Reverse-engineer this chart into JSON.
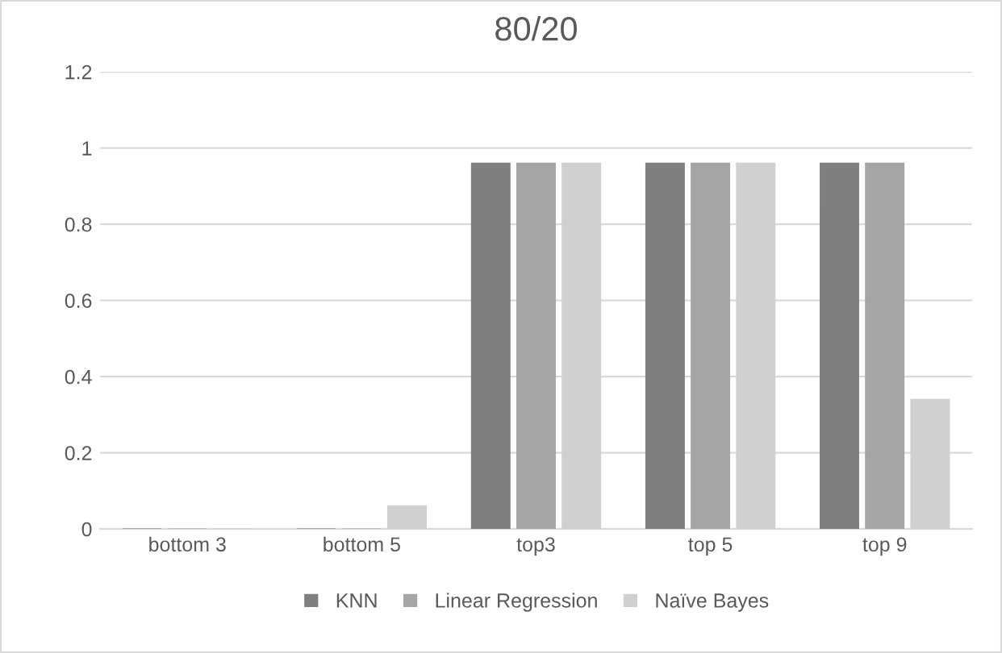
{
  "chart_data": {
    "type": "bar",
    "title": "80/20",
    "categories": [
      "bottom 3",
      "bottom 5",
      "top3",
      "top 5",
      "top 9"
    ],
    "series": [
      {
        "name": "KNN",
        "color": "#7f7f7f",
        "values": [
          0,
          0,
          0.96,
          0.96,
          0.96
        ]
      },
      {
        "name": "Linear Regression",
        "color": "#a5a5a5",
        "values": [
          0,
          0,
          0.96,
          0.96,
          0.96
        ]
      },
      {
        "name": "Naïve Bayes",
        "color": "#d0d0d0",
        "values": [
          0,
          0.06,
          0.96,
          0.96,
          0.34
        ]
      }
    ],
    "ylim": [
      0,
      1.2
    ],
    "yticks": [
      0,
      0.2,
      0.4,
      0.6,
      0.8,
      1,
      1.2
    ],
    "grid": "y",
    "legend": "bottom"
  }
}
